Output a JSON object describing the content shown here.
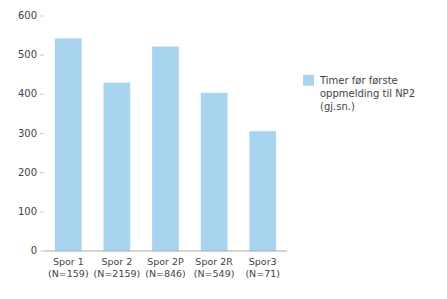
{
  "chart_data": {
    "type": "bar",
    "categories": [
      "Spor 1\n(N=159)",
      "Spor 2\n(N=2159)",
      "Spor 2P\n(N=846)",
      "Spor 2R\n(N=549)",
      "Spor3\n(N=71)"
    ],
    "series": [
      {
        "name": "Timer før første\noppmelding til NP2\n(gj.sn.)",
        "color": "#a8d4f0",
        "values": [
          543,
          430,
          522,
          404,
          306
        ]
      }
    ],
    "ylim": [
      0,
      600
    ],
    "yticks": [
      0,
      100,
      200,
      300,
      400,
      500,
      600
    ],
    "grid": false,
    "legend": "right"
  }
}
